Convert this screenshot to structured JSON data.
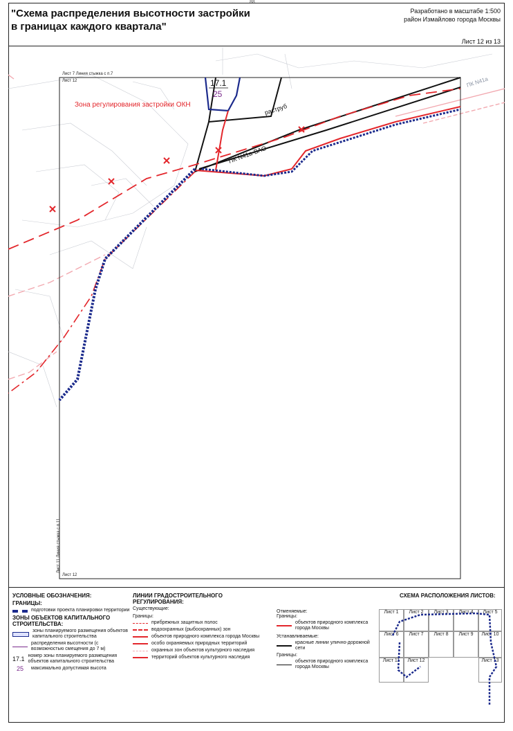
{
  "header": {
    "page_number": "88",
    "title_line1": "\"Схема распределения высотности застройки",
    "title_line2": "в границах каждого квартала\"",
    "scale_line1": "Разработано в масштабе 1:500",
    "scale_line2": "район Измайлово города Москвы",
    "sheet": "Лист 12 из 13"
  },
  "map": {
    "label_sheet7_link": "Лист 7 Линия стыжка с п.7",
    "label_sheet12_top": "Лист 12",
    "label_sheet12_bottom": "Лист 12",
    "label_sheet11_link": "Лист 11 Линия стыжка с п.11",
    "zone_label": "Зона регулирования застройки ОКН",
    "zone_number": "17.1",
    "zone_height": "25",
    "raspub_label": "раструб",
    "pk_label": "ПК N41а-ВАО",
    "pk_label_right": "ПК N41а"
  },
  "legend": {
    "conventions_title": "УСЛОВНЫЕ ОБОЗНАЧЕНИЯ:",
    "borders_title": "ГРАНИЦЫ:",
    "project_border": "подготовки проекта планировки территории",
    "zones_title": "ЗОНЫ ОБЪЕКТОВ КАПИТАЛЬНОГО СТРОИТЕЛЬСТВА:",
    "zones_placement": "зоны планируемого размещения объектов капитального строительства",
    "height_distribution": "распределения высотности (с возможностью смещения до 7 м)",
    "zone_number_sample": "17.1",
    "zone_number_desc": "номер зоны планируемого размещения объектов капитального строительства",
    "height_sample": "25",
    "height_desc": "максимально допустимая высота",
    "regulation_title": "ЛИНИИ ГРАДОСТРОИТЕЛЬНОГО РЕГУЛИРОВАНИЯ:",
    "existing_title": "Существующие:",
    "borders_sub": "Границы:",
    "coastal_strips": "прибрежных защитных полос",
    "water_protection": "водоохранных (рыбоохранных) зон",
    "natural_complex": "объектов природного комплекса города Москвы",
    "protected_natural": "особо охраняемых природных территорий",
    "cultural_zones": "охранных зон объектов культурного наследия",
    "cultural_territories": "территорий объектов культурного наследия",
    "cancelled_title": "Отменяемые:",
    "cancelled_borders": "Границы:",
    "cancelled_natural": "объектов природного комплекса города Москвы",
    "established_title": "Устанавливаемые:",
    "red_lines": "красные линии улично-дорожной сети",
    "established_borders": "Границы:",
    "established_natural": "объектов природного комплекса города Москвы",
    "sheet_scheme_title": "СХЕМА РАСПОЛОЖЕНИЯ ЛИСТОВ:",
    "sheets": [
      "Лист 1",
      "Лист 2",
      "Лист 3",
      "Лист 4",
      "Лист 5",
      "Лист 6",
      "Лист 7",
      "Лист 8",
      "Лист 9",
      "Лист 10",
      "Лист 11",
      "Лист 12",
      "Лист 13"
    ]
  },
  "colors": {
    "red": "#e3262b",
    "navy": "#1b2a8c",
    "pink": "#f2a9b0",
    "grey": "#9aa3b0"
  }
}
